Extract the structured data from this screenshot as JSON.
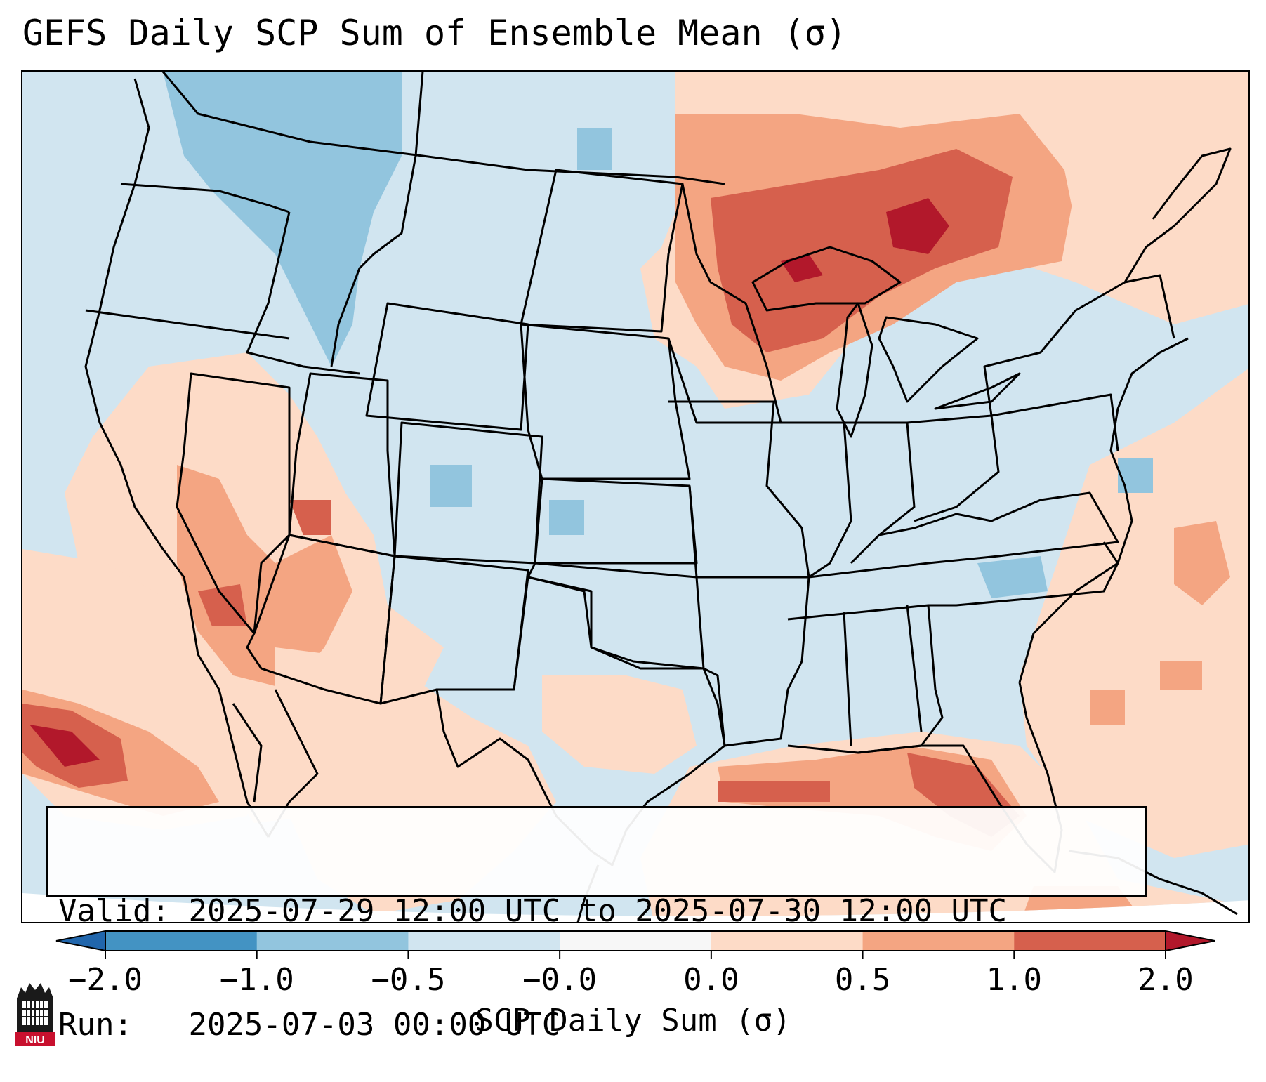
{
  "title": "GEFS Daily SCP Sum of Ensemble Mean (σ)",
  "map": {
    "projection": "Lambert Conformal, contiguous United States",
    "land_outline_color": "#000000",
    "no_data_color": "#ffffff"
  },
  "info_box": {
    "valid_label": "Valid:",
    "valid_value": "2025-07-29 12:00 UTC to 2025-07-30 12:00 UTC",
    "run_label": "Run:",
    "run_value": "2025-07-03 00:00 UTC"
  },
  "colorbar": {
    "label": "SCP Daily Sum (σ)",
    "ticks": [
      "−2.0",
      "−1.0",
      "−0.5",
      "−0.0",
      "0.0",
      "0.5",
      "1.0",
      "2.0"
    ],
    "bins": [
      {
        "range": "< -2.0",
        "color": "#2166ac"
      },
      {
        "range": "-2.0 to -1.0",
        "color": "#4393c3"
      },
      {
        "range": "-1.0 to -0.5",
        "color": "#92c5de"
      },
      {
        "range": "-0.5 to -0.0",
        "color": "#d1e5f0"
      },
      {
        "range": "-0.0 to 0.0",
        "color": "#f7f7f7"
      },
      {
        "range": "0.0 to 0.5",
        "color": "#fddbc7"
      },
      {
        "range": "0.5 to 1.0",
        "color": "#f4a582"
      },
      {
        "range": "1.0 to 2.0",
        "color": "#d6604d"
      },
      {
        "range": "> 2.0",
        "color": "#b2182b"
      }
    ],
    "extend": "both"
  },
  "logo": {
    "text": "NIU",
    "icon": "niu-castle-logo"
  }
}
